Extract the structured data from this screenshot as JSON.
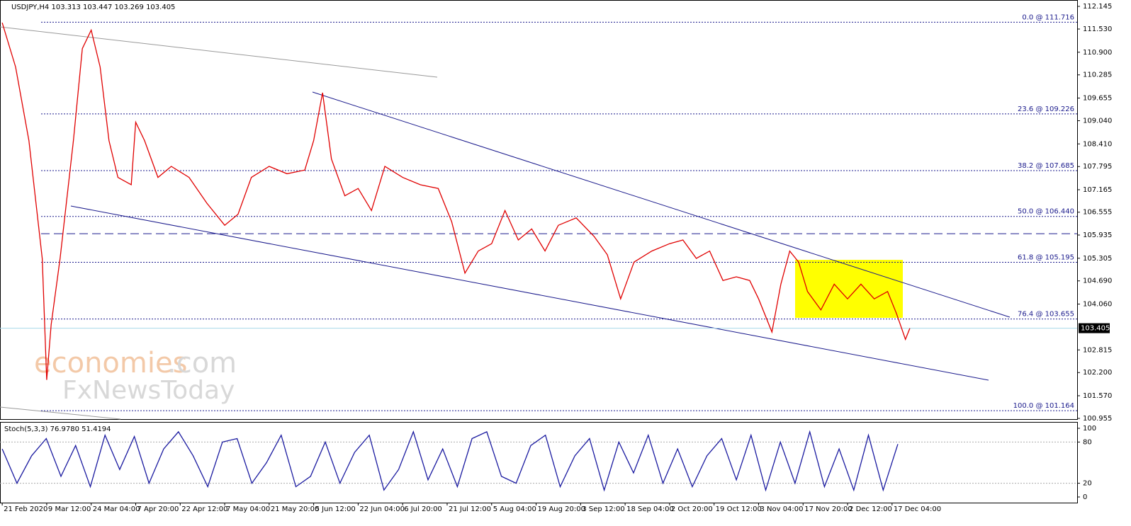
{
  "chart_data": [
    {
      "type": "line",
      "title": "USDJPY,H4  103.313 103.447 103.269 103.405",
      "categories": [
        "21 Feb 2020",
        "9 Mar 12:00",
        "24 Mar 04:00",
        "7 Apr 20:00",
        "22 Apr 12:00",
        "7 May 04:00",
        "21 May 20:00",
        "5 Jun 12:00",
        "22 Jun 04:00",
        "6 Jul 20:00",
        "21 Jul 12:00",
        "5 Aug 04:00",
        "19 Aug 20:00",
        "3 Sep 12:00",
        "18 Sep 04:00",
        "2 Oct 20:00",
        "19 Oct 12:00",
        "3 Nov 04:00",
        "17 Nov 20:00",
        "2 Dec 12:00",
        "17 Dec 04:00"
      ],
      "x": [
        0,
        0.3,
        0.6,
        0.9,
        1.0,
        1.1,
        1.3,
        1.6,
        1.8,
        2.0,
        2.2,
        2.4,
        2.6,
        2.9,
        3.0,
        3.2,
        3.5,
        3.8,
        4.2,
        4.6,
        5.0,
        5.3,
        5.6,
        6.0,
        6.4,
        6.8,
        7.0,
        7.2,
        7.4,
        7.7,
        8.0,
        8.3,
        8.6,
        9.0,
        9.4,
        9.8,
        10.1,
        10.4,
        10.7,
        11.0,
        11.3,
        11.6,
        11.9,
        12.2,
        12.5,
        12.9,
        13.3,
        13.6,
        13.9,
        14.2,
        14.6,
        15.0,
        15.3,
        15.6,
        15.9,
        16.2,
        16.5,
        16.8,
        17.0,
        17.3,
        17.5,
        17.7,
        17.9,
        18.1,
        18.4,
        18.7,
        19.0,
        19.3,
        19.6,
        19.9,
        20.1,
        20.3,
        20.4
      ],
      "values": [
        111.7,
        110.5,
        108.5,
        105.3,
        102,
        103.5,
        105.3,
        108.5,
        111,
        111.5,
        110.5,
        108.5,
        107.5,
        107.3,
        109,
        108.5,
        107.5,
        107.8,
        107.5,
        106.8,
        106.2,
        106.5,
        107.5,
        107.8,
        107.6,
        107.7,
        108.5,
        109.8,
        108,
        107,
        107.2,
        106.6,
        107.8,
        107.5,
        107.3,
        107.2,
        106.3,
        104.9,
        105.5,
        105.7,
        106.6,
        105.8,
        106.1,
        105.5,
        106.2,
        106.4,
        105.9,
        105.4,
        104.2,
        105.2,
        105.5,
        105.7,
        105.8,
        105.3,
        105.5,
        104.7,
        104.8,
        104.7,
        104.2,
        103.3,
        104.6,
        105.5,
        105.2,
        104.4,
        103.9,
        104.6,
        104.2,
        104.6,
        104.2,
        104.4,
        103.8,
        103.1,
        103.4
      ],
      "color": "#e00000",
      "xlim": [
        -0.05,
        24.16
      ],
      "ylim": [
        100.955,
        112.145
      ],
      "yticks": [
        112.145,
        {
          "value": 111.53,
          "label": "111.530"
        },
        {
          "value": 110.9,
          "label": "110.900"
        },
        110.285,
        109.655,
        {
          "value": 109.04,
          "label": "109.040"
        },
        {
          "value": 108.41,
          "label": "108.410"
        },
        107.795,
        107.165,
        106.555,
        105.935,
        105.305,
        {
          "value": 104.69,
          "label": "104.690"
        },
        {
          "value": 104.06,
          "label": "104.060"
        },
        102.815,
        {
          "value": 102.2,
          "label": "102.200"
        },
        {
          "value": 101.57,
          "label": "101.570"
        },
        100.955
      ],
      "last_price": 103.405,
      "resistance": 105.97,
      "fib_levels": [
        {
          "label": "0.0 @ 111.716",
          "value": 111.716
        },
        {
          "label": "23.6 @ 109.226",
          "value": 109.226
        },
        {
          "label": "38.2 @ 107.685",
          "value": 107.685
        },
        {
          "label": "50.0 @ 106.440",
          "value": 106.44
        },
        {
          "label": "61.8 @ 105.195",
          "value": 105.195
        },
        {
          "label": "76.4 @ 103.655",
          "value": 103.655
        },
        {
          "label": "100.0 @ 101.164",
          "value": 101.164
        }
      ]
    },
    {
      "type": "line",
      "title": "Stoch(5,3,3) 76.9780 51.4194",
      "x": [
        0,
        0.33,
        0.66,
        0.99,
        1.32,
        1.65,
        1.98,
        2.31,
        2.64,
        2.97,
        3.3,
        3.63,
        3.96,
        4.29,
        4.62,
        4.95,
        5.28,
        5.61,
        5.94,
        6.27,
        6.6,
        6.93,
        7.26,
        7.59,
        7.92,
        8.25,
        8.58,
        8.91,
        9.24,
        9.57,
        9.9,
        10.23,
        10.56,
        10.89,
        11.22,
        11.55,
        11.88,
        12.21,
        12.54,
        12.87,
        13.2,
        13.53,
        13.86,
        14.19,
        14.52,
        14.85,
        15.18,
        15.51,
        15.84,
        16.17,
        16.5,
        16.83,
        17.16,
        17.49,
        17.82,
        18.15,
        18.48,
        18.81,
        19.14,
        19.47,
        19.8,
        20.13
      ],
      "values": [
        70,
        20,
        60,
        85,
        30,
        75,
        15,
        90,
        40,
        88,
        20,
        70,
        95,
        60,
        15,
        80,
        85,
        20,
        50,
        90,
        15,
        30,
        80,
        20,
        65,
        90,
        10,
        40,
        95,
        25,
        70,
        15,
        85,
        95,
        30,
        20,
        75,
        90,
        15,
        60,
        85,
        10,
        80,
        35,
        90,
        20,
        70,
        15,
        60,
        85,
        25,
        90,
        10,
        80,
        20,
        95,
        15,
        70,
        10,
        90,
        10,
        77
      ],
      "color": "#1a1aa0",
      "ylim": [
        0,
        100
      ],
      "yticks": [
        0,
        20,
        80,
        100
      ]
    }
  ]
}
